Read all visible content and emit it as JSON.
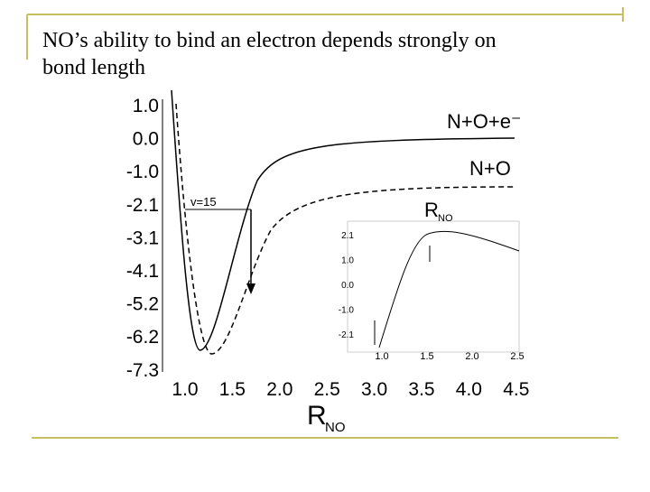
{
  "title": "NO’s ability to bind an electron depends strongly on bond length",
  "figure": {
    "y_ticks": [
      "1.0",
      "0.0",
      "-1.0",
      "-2.1",
      "-3.1",
      "-4.1",
      "-5.2",
      "-6.2",
      "-7.3"
    ],
    "x_ticks": [
      "1.0",
      "1.5",
      "2.0",
      "2.5",
      "3.0",
      "3.5",
      "4.0",
      "4.5"
    ],
    "x_label": {
      "main": "R",
      "sub": "NO"
    },
    "curve_labels": {
      "upper": "N+O+e⁻",
      "lower": "N+O"
    },
    "level_label": "v=15",
    "inset": {
      "label": {
        "main": "R",
        "sub": "NO"
      },
      "y_ticks": [
        "2.1",
        "1.0",
        "0.0",
        "-1.0",
        "-2.1"
      ],
      "x_ticks": [
        "1.0",
        "1.5",
        "2.0",
        "2.5"
      ]
    }
  }
}
